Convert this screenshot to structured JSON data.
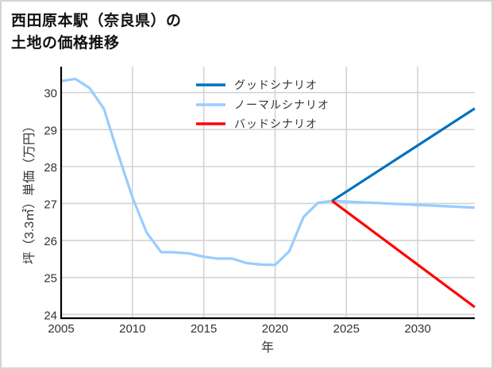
{
  "title": {
    "line1": "西田原本駅（奈良県）の",
    "line2": "土地の価格推移"
  },
  "legend": [
    {
      "label": "グッドシナリオ",
      "color": "#0070C0"
    },
    {
      "label": "ノーマルシナリオ",
      "color": "#99CCFF"
    },
    {
      "label": "バッドシナリオ",
      "color": "#FF0000"
    }
  ],
  "colors": {
    "grid": "#D3D3D3",
    "axis": "#000000",
    "border": "#D4D4D4"
  },
  "chart_data": {
    "type": "line",
    "title": "西田原本駅（奈良県）の土地の価格推移",
    "xlabel": "年",
    "ylabel": "坪（3.3㎡）単価（万円）",
    "xlim": [
      2005,
      2034
    ],
    "ylim": [
      23.9,
      30.7
    ],
    "xticks": [
      2005,
      2010,
      2015,
      2020,
      2025,
      2030
    ],
    "yticks": [
      24,
      25,
      26,
      27,
      28,
      29,
      30
    ],
    "grid": true,
    "legend_position": "upper center",
    "series": [
      {
        "name": "グッドシナリオ",
        "color": "#0070C0",
        "x": [
          2024,
          2034
        ],
        "values": [
          27.07,
          29.57
        ]
      },
      {
        "name": "ノーマルシナリオ",
        "color": "#99CCFF",
        "x": [
          2005,
          2006,
          2007,
          2008,
          2009,
          2010,
          2011,
          2012,
          2013,
          2014,
          2015,
          2016,
          2017,
          2018,
          2019,
          2020,
          2021,
          2022,
          2023,
          2024,
          2034
        ],
        "values": [
          30.31,
          30.37,
          30.12,
          29.56,
          28.33,
          27.17,
          26.21,
          25.69,
          25.68,
          25.65,
          25.56,
          25.51,
          25.51,
          25.39,
          25.35,
          25.34,
          25.71,
          26.64,
          27.02,
          27.07,
          26.89
        ]
      },
      {
        "name": "バッドシナリオ",
        "color": "#FF0000",
        "x": [
          2024,
          2034
        ],
        "values": [
          27.07,
          24.2
        ]
      }
    ]
  }
}
